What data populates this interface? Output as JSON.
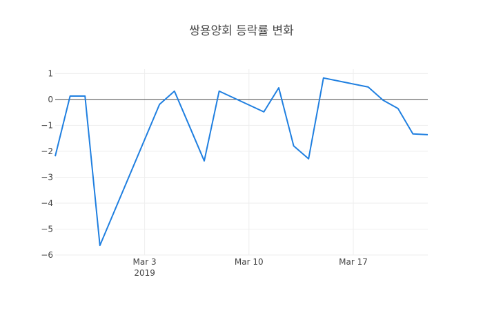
{
  "chart_data": {
    "type": "line",
    "title": "쌍용양회 등락률 변화",
    "xlabel": "",
    "ylabel": "",
    "x": [
      "2019-02-25",
      "2019-02-26",
      "2019-02-27",
      "2019-02-28",
      "2019-03-04",
      "2019-03-05",
      "2019-03-06",
      "2019-03-07",
      "2019-03-08",
      "2019-03-11",
      "2019-03-12",
      "2019-03-13",
      "2019-03-14",
      "2019-03-15",
      "2019-03-18",
      "2019-03-19",
      "2019-03-20",
      "2019-03-21",
      "2019-03-22"
    ],
    "series": [
      {
        "name": "등락률",
        "color": "#1f7fe0",
        "values": [
          -2.19,
          0.13,
          0.13,
          -5.63,
          -0.19,
          0.32,
          -1.02,
          -2.37,
          0.32,
          -0.48,
          0.45,
          -1.79,
          -2.29,
          0.83,
          0.48,
          -0.03,
          -0.35,
          -1.33,
          -1.36
        ]
      }
    ],
    "yticks": [
      1,
      0,
      -1,
      -2,
      -3,
      -4,
      -5,
      -6
    ],
    "ytick_labels": [
      "1",
      "0",
      "−1",
      "−2",
      "−3",
      "−4",
      "−5",
      "−6"
    ],
    "xticks": [
      {
        "date": "2019-03-03",
        "label": "Mar 3",
        "sublabel": "2019"
      },
      {
        "date": "2019-03-10",
        "label": "Mar 10",
        "sublabel": ""
      },
      {
        "date": "2019-03-17",
        "label": "Mar 17",
        "sublabel": ""
      }
    ],
    "ylim": [
      -6,
      1.17
    ],
    "xlim": [
      "2019-02-25",
      "2019-03-22"
    ],
    "grid": true,
    "zero_line": true,
    "legend": "none"
  }
}
